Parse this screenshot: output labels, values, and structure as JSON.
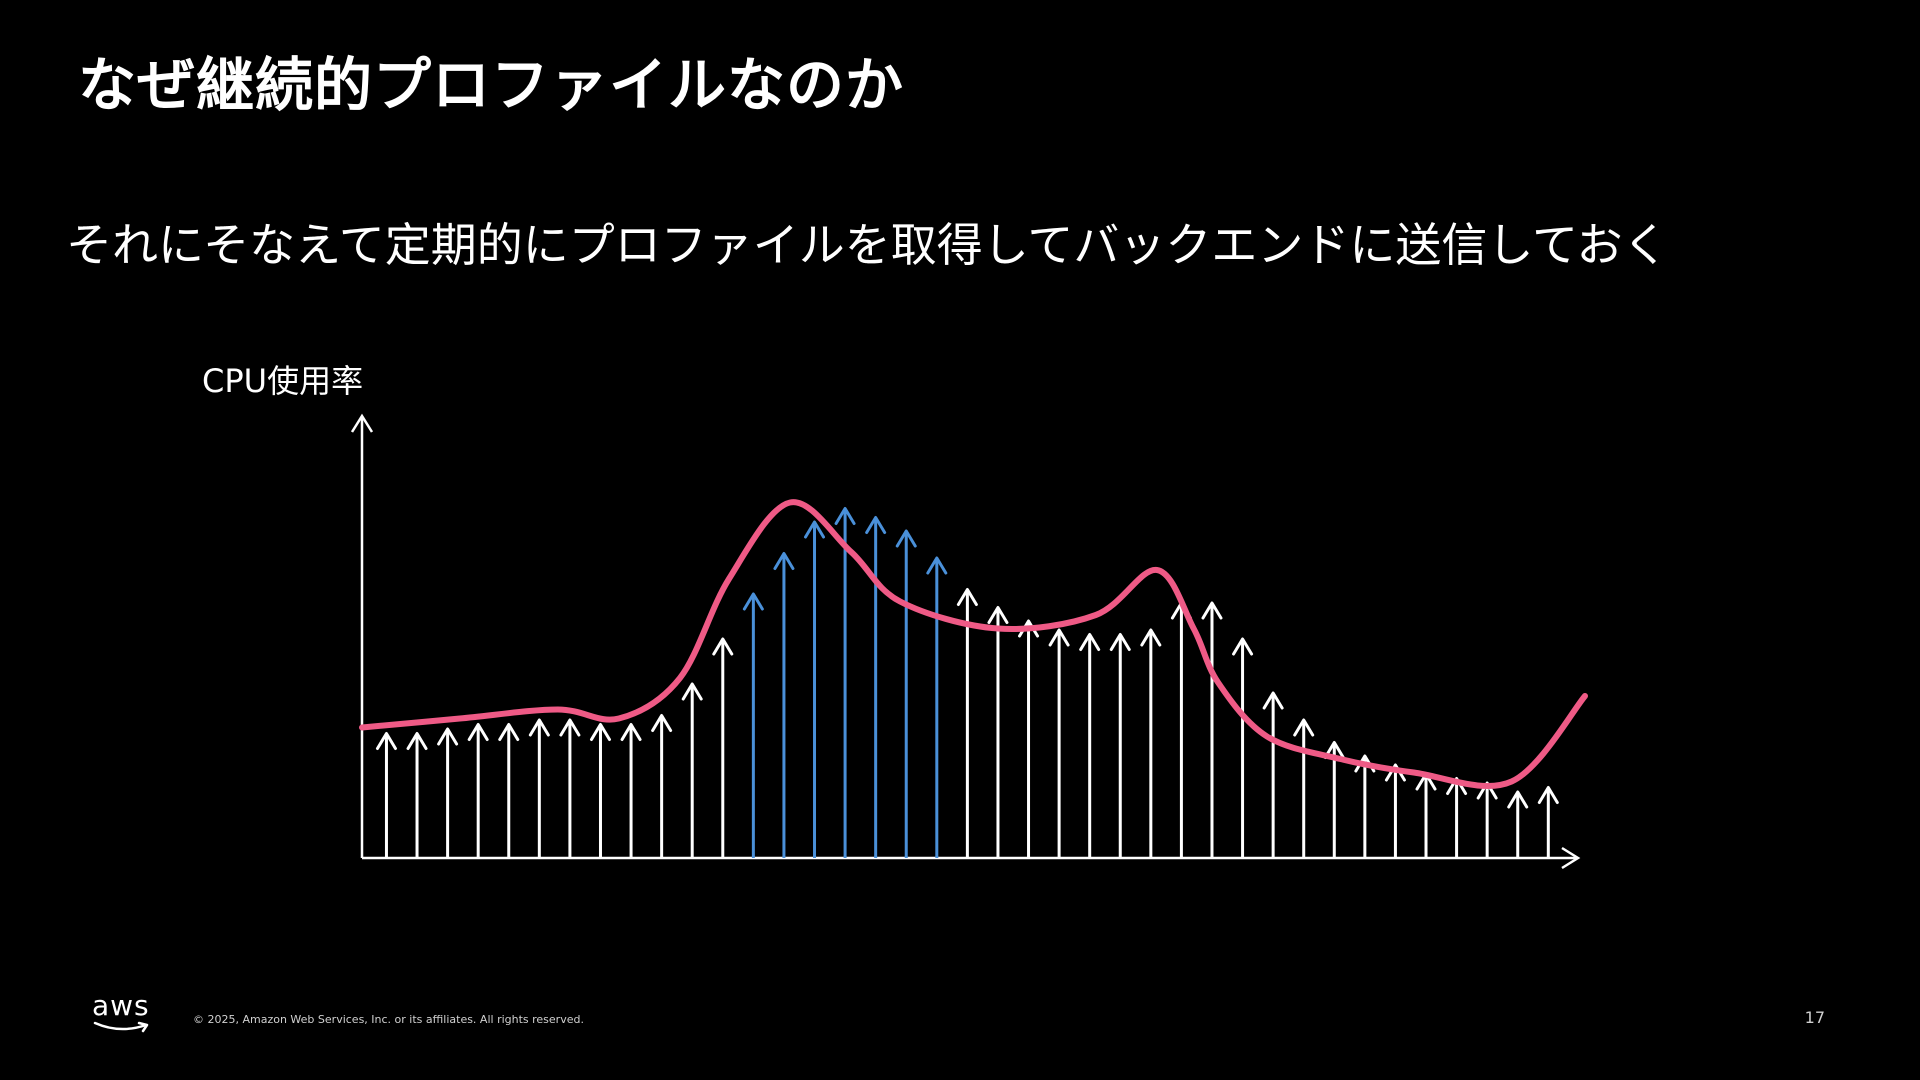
{
  "slide": {
    "title": "なぜ継続的プロファイルなのか",
    "subtitle": "それにそなえて定期的にプロファイルを取得してバックエンドに送信しておく",
    "y_axis_label": "CPU使用率",
    "page_number": "17"
  },
  "footer": {
    "logo_text": "aws",
    "copyright": "© 2025, Amazon Web Services, Inc. or its affiliates. All rights reserved."
  },
  "colors": {
    "background": "#000000",
    "curve": "#ef5a86",
    "highlight_arrow": "#4a90d9",
    "arrow": "#ffffff"
  },
  "chart_data": {
    "type": "line",
    "title": "",
    "xlabel": "",
    "ylabel": "CPU使用率",
    "ylim": [
      0,
      100
    ],
    "grid": false,
    "curve": {
      "x": [
        0,
        8,
        16,
        21,
        26,
        30,
        35,
        40,
        44,
        52,
        60,
        65,
        68,
        70,
        74,
        80,
        86,
        94,
        100
      ],
      "y": [
        29,
        31,
        33,
        31,
        40,
        62,
        79,
        68,
        57,
        51,
        54,
        64,
        51,
        39,
        27,
        22,
        19,
        17,
        36
      ]
    },
    "samples": {
      "x": [
        2,
        4.5,
        7,
        9.5,
        12,
        14.5,
        17,
        19.5,
        22,
        24.5,
        27,
        29.5,
        32,
        34.5,
        37,
        39.5,
        42,
        44.5,
        47,
        49.5,
        52,
        54.5,
        57,
        59.5,
        62,
        64.5,
        67,
        69.5,
        72,
        74.5,
        77,
        79.5,
        82,
        84.5,
        87,
        89.5,
        92,
        94.5,
        97
      ],
      "y": [
        29,
        29,
        30,
        31,
        31,
        32,
        32,
        31,
        31,
        33,
        40,
        50,
        60,
        69,
        76,
        79,
        77,
        74,
        68,
        61,
        57,
        54,
        52,
        51,
        51,
        52,
        58,
        58,
        50,
        38,
        32,
        27,
        24,
        22,
        20,
        19,
        18,
        16,
        17
      ],
      "highlighted_range": [
        12,
        18
      ]
    }
  }
}
